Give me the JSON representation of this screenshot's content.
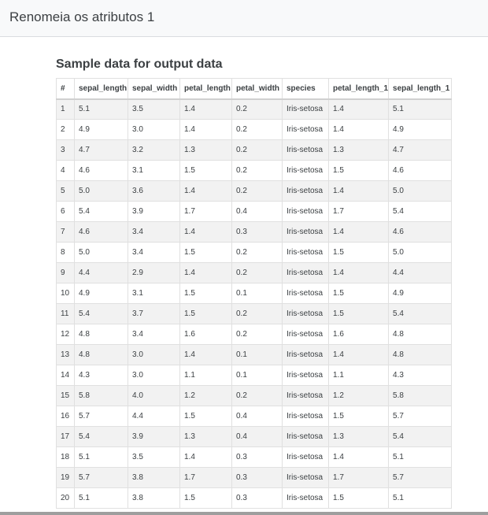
{
  "window": {
    "title": "Renomeia os atributos 1"
  },
  "section": {
    "title": "Sample data for output data"
  },
  "table": {
    "headers": [
      "#",
      "sepal_length",
      "sepal_width",
      "petal_length",
      "petal_width",
      "species",
      "petal_length_1",
      "sepal_length_1"
    ],
    "rows": [
      [
        "1",
        "5.1",
        "3.5",
        "1.4",
        "0.2",
        "Iris-setosa",
        "1.4",
        "5.1"
      ],
      [
        "2",
        "4.9",
        "3.0",
        "1.4",
        "0.2",
        "Iris-setosa",
        "1.4",
        "4.9"
      ],
      [
        "3",
        "4.7",
        "3.2",
        "1.3",
        "0.2",
        "Iris-setosa",
        "1.3",
        "4.7"
      ],
      [
        "4",
        "4.6",
        "3.1",
        "1.5",
        "0.2",
        "Iris-setosa",
        "1.5",
        "4.6"
      ],
      [
        "5",
        "5.0",
        "3.6",
        "1.4",
        "0.2",
        "Iris-setosa",
        "1.4",
        "5.0"
      ],
      [
        "6",
        "5.4",
        "3.9",
        "1.7",
        "0.4",
        "Iris-setosa",
        "1.7",
        "5.4"
      ],
      [
        "7",
        "4.6",
        "3.4",
        "1.4",
        "0.3",
        "Iris-setosa",
        "1.4",
        "4.6"
      ],
      [
        "8",
        "5.0",
        "3.4",
        "1.5",
        "0.2",
        "Iris-setosa",
        "1.5",
        "5.0"
      ],
      [
        "9",
        "4.4",
        "2.9",
        "1.4",
        "0.2",
        "Iris-setosa",
        "1.4",
        "4.4"
      ],
      [
        "10",
        "4.9",
        "3.1",
        "1.5",
        "0.1",
        "Iris-setosa",
        "1.5",
        "4.9"
      ],
      [
        "11",
        "5.4",
        "3.7",
        "1.5",
        "0.2",
        "Iris-setosa",
        "1.5",
        "5.4"
      ],
      [
        "12",
        "4.8",
        "3.4",
        "1.6",
        "0.2",
        "Iris-setosa",
        "1.6",
        "4.8"
      ],
      [
        "13",
        "4.8",
        "3.0",
        "1.4",
        "0.1",
        "Iris-setosa",
        "1.4",
        "4.8"
      ],
      [
        "14",
        "4.3",
        "3.0",
        "1.1",
        "0.1",
        "Iris-setosa",
        "1.1",
        "4.3"
      ],
      [
        "15",
        "5.8",
        "4.0",
        "1.2",
        "0.2",
        "Iris-setosa",
        "1.2",
        "5.8"
      ],
      [
        "16",
        "5.7",
        "4.4",
        "1.5",
        "0.4",
        "Iris-setosa",
        "1.5",
        "5.7"
      ],
      [
        "17",
        "5.4",
        "3.9",
        "1.3",
        "0.4",
        "Iris-setosa",
        "1.3",
        "5.4"
      ],
      [
        "18",
        "5.1",
        "3.5",
        "1.4",
        "0.3",
        "Iris-setosa",
        "1.4",
        "5.1"
      ],
      [
        "19",
        "5.7",
        "3.8",
        "1.7",
        "0.3",
        "Iris-setosa",
        "1.7",
        "5.7"
      ],
      [
        "20",
        "5.1",
        "3.8",
        "1.5",
        "0.3",
        "Iris-setosa",
        "1.5",
        "5.1"
      ]
    ]
  }
}
